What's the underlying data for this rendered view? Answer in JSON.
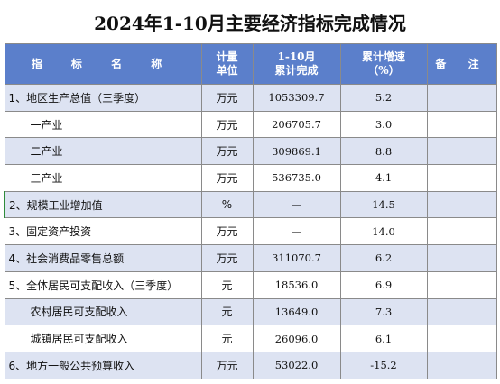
{
  "title": "2024年1-10月主要经济指标完成情况",
  "headers": {
    "name": "指 标 名 称",
    "unit_line1": "计量",
    "unit_line2": "单位",
    "value_line1": "1-10月",
    "value_line2": "累计完成",
    "rate_line1": "累计增速",
    "rate_line2": "（%）",
    "note": "备 注"
  },
  "rows": [
    {
      "name": "1、地区生产总值（三季度）",
      "unit": "万元",
      "value": "1053309.7",
      "rate": "5.2",
      "note": ""
    },
    {
      "name": "一产业",
      "unit": "万元",
      "value": "206705.7",
      "rate": "3.0",
      "note": ""
    },
    {
      "name": "二产业",
      "unit": "万元",
      "value": "309869.1",
      "rate": "8.8",
      "note": ""
    },
    {
      "name": "三产业",
      "unit": "万元",
      "value": "536735.0",
      "rate": "4.1",
      "note": ""
    },
    {
      "name": "2、规模工业增加值",
      "unit": "%",
      "value": "—",
      "rate": "14.5",
      "note": ""
    },
    {
      "name": "3、固定资产投资",
      "unit": "万元",
      "value": "—",
      "rate": "14.0",
      "note": ""
    },
    {
      "name": "4、社会消费品零售总额",
      "unit": "万元",
      "value": "311070.7",
      "rate": "6.2",
      "note": ""
    },
    {
      "name": "5、全体居民可支配收入（三季度）",
      "unit": "元",
      "value": "18536.0",
      "rate": "6.9",
      "note": ""
    },
    {
      "name": "农村居民可支配收入",
      "unit": "元",
      "value": "13649.0",
      "rate": "7.3",
      "note": ""
    },
    {
      "name": "城镇居民可支配收入",
      "unit": "元",
      "value": "26096.0",
      "rate": "6.1",
      "note": ""
    },
    {
      "name": "6、地方一般公共预算收入",
      "unit": "万元",
      "value": "53022.0",
      "rate": "-15.2",
      "note": ""
    }
  ]
}
